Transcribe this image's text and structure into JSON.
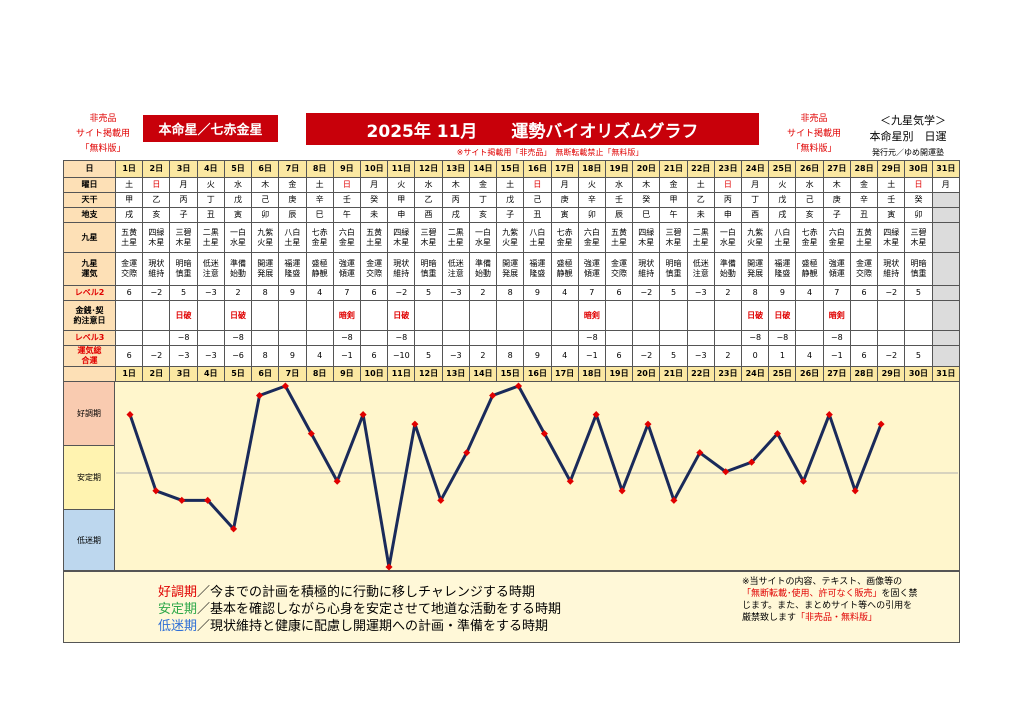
{
  "header": {
    "left_note": [
      "非売品",
      "サイト掲載用",
      "「無料版」"
    ],
    "honmeisei": "本命星／七赤金星",
    "main_title": "2025年 11月　　運勢バイオリズムグラフ",
    "right_note": [
      "非売品",
      "サイト掲載用",
      "「無料版」"
    ],
    "sub_notice": "※サイト掲載用「非売品」　無断転載禁止「無料版」",
    "brand_title": "＜九星気学＞",
    "brand_subtitle": "本命星別　日運",
    "publisher": "発行元／ゆめ開運塾"
  },
  "row_labels": {
    "day": "日",
    "weekday": "曜日",
    "tenkan": "天干",
    "chishi": "地支",
    "kyusei": "九星",
    "unsei": "九星運気",
    "level2": "レベル2",
    "kinsen": "金銭･契約注意日",
    "level3": "レベル3",
    "total": "運気総合運"
  },
  "days": [
    "1日",
    "2日",
    "3日",
    "4日",
    "5日",
    "6日",
    "7日",
    "8日",
    "9日",
    "10日",
    "11日",
    "12日",
    "13日",
    "14日",
    "15日",
    "16日",
    "17日",
    "18日",
    "19日",
    "20日",
    "21日",
    "22日",
    "23日",
    "24日",
    "25日",
    "26日",
    "27日",
    "28日",
    "29日",
    "30日",
    "31日"
  ],
  "weekdays": [
    "土",
    "日",
    "月",
    "火",
    "水",
    "木",
    "金",
    "土",
    "日",
    "月",
    "火",
    "水",
    "木",
    "金",
    "土",
    "日",
    "月",
    "火",
    "水",
    "木",
    "金",
    "土",
    "日",
    "月",
    "火",
    "水",
    "木",
    "金",
    "土",
    "日",
    "月"
  ],
  "sunday_indices": [
    1,
    8,
    15,
    22,
    29
  ],
  "tenkan": [
    "甲",
    "乙",
    "丙",
    "丁",
    "戊",
    "己",
    "庚",
    "辛",
    "壬",
    "癸",
    "甲",
    "乙",
    "丙",
    "丁",
    "戊",
    "己",
    "庚",
    "辛",
    "壬",
    "癸",
    "甲",
    "乙",
    "丙",
    "丁",
    "戊",
    "己",
    "庚",
    "辛",
    "壬",
    "癸",
    ""
  ],
  "chishi": [
    "戌",
    "亥",
    "子",
    "丑",
    "寅",
    "卯",
    "辰",
    "巳",
    "午",
    "未",
    "申",
    "酉",
    "戌",
    "亥",
    "子",
    "丑",
    "寅",
    "卯",
    "辰",
    "巳",
    "午",
    "未",
    "申",
    "酉",
    "戌",
    "亥",
    "子",
    "丑",
    "寅",
    "卯",
    ""
  ],
  "kyusei": [
    "五黄土星",
    "四緑木星",
    "三碧木星",
    "二黒土星",
    "一白水星",
    "九紫火星",
    "八白土星",
    "七赤金星",
    "六白金星",
    "五黄土星",
    "四緑木星",
    "三碧木星",
    "二黒土星",
    "一白水星",
    "九紫火星",
    "八白土星",
    "七赤金星",
    "六白金星",
    "五黄土星",
    "四緑木星",
    "三碧木星",
    "二黒土星",
    "一白水星",
    "九紫火星",
    "八白土星",
    "七赤金星",
    "六白金星",
    "五黄土星",
    "四緑木星",
    "三碧木星",
    ""
  ],
  "unsei": [
    "金運交際",
    "現状維持",
    "明暗慎重",
    "低迷注意",
    "準備始動",
    "開運発展",
    "福運隆盛",
    "盛極静観",
    "強運傾運",
    "金運交際",
    "現状維持",
    "明暗慎重",
    "低迷注意",
    "準備始動",
    "開運発展",
    "福運隆盛",
    "盛極静観",
    "強運傾運",
    "金運交際",
    "現状維持",
    "明暗慎重",
    "低迷注意",
    "準備始動",
    "開運発展",
    "福運隆盛",
    "盛極静観",
    "強運傾運",
    "金運交際",
    "現状維持",
    "明暗慎重",
    ""
  ],
  "level2": [
    "6",
    "−2",
    "5",
    "−3",
    "2",
    "8",
    "9",
    "4",
    "7",
    "6",
    "−2",
    "5",
    "−3",
    "2",
    "8",
    "9",
    "4",
    "7",
    "6",
    "−2",
    "5",
    "−3",
    "2",
    "8",
    "9",
    "4",
    "7",
    "6",
    "−2",
    "5",
    ""
  ],
  "kinsen": [
    "",
    "",
    "日破",
    "",
    "日破",
    "",
    "",
    "",
    "暗剣",
    "",
    "日破",
    "",
    "",
    "",
    "",
    "",
    "",
    "暗剣",
    "",
    "",
    "",
    "",
    "",
    "日破",
    "日破",
    "",
    "暗剣",
    "",
    "",
    "",
    ""
  ],
  "level3": [
    "",
    "",
    "−8",
    "",
    "−8",
    "",
    "",
    "",
    "−8",
    "",
    "−8",
    "",
    "",
    "",
    "",
    "",
    "",
    "−8",
    "",
    "",
    "",
    "",
    "",
    "−8",
    "−8",
    "",
    "−8",
    "",
    "",
    "",
    ""
  ],
  "total": [
    "6",
    "−2",
    "−3",
    "−3",
    "−6",
    "8",
    "9",
    "4",
    "−1",
    "6",
    "−10",
    "5",
    "−3",
    "2",
    "8",
    "9",
    "4",
    "−1",
    "6",
    "−2",
    "5",
    "−3",
    "2",
    "0",
    "1",
    "4",
    "−1",
    "6",
    "−2",
    "5",
    ""
  ],
  "zones": {
    "good": {
      "label": "好調期",
      "color": "#f9cbb0"
    },
    "stable": {
      "label": "安定期",
      "color": "#fff3b0"
    },
    "low": {
      "label": "低迷期",
      "color": "#bdd7ee"
    }
  },
  "chart_data": {
    "type": "line",
    "x": [
      1,
      2,
      3,
      4,
      5,
      6,
      7,
      8,
      9,
      10,
      11,
      12,
      13,
      14,
      15,
      16,
      17,
      18,
      19,
      20,
      21,
      22,
      23,
      24,
      25,
      26,
      27,
      28,
      29,
      30
    ],
    "series": [
      {
        "values": [
          6,
          -2,
          -3,
          -3,
          -6,
          8,
          9,
          4,
          -1,
          6,
          -10,
          5,
          -3,
          2,
          8,
          9,
          4,
          -1,
          6,
          -2,
          5,
          -3,
          2,
          0,
          1,
          4,
          -1,
          6,
          -2,
          5
        ]
      }
    ],
    "ylim": [
      -10,
      9
    ],
    "line_color": "#1a2a5a",
    "marker_color": "#e00000",
    "grid": false
  },
  "legend": [
    {
      "term": "好調期",
      "text": "／今までの計画を積極的に行動に移しチャレンジする時期",
      "color": "#e00000"
    },
    {
      "term": "安定期",
      "text": "／基本を確認しながら心身を安定させて地道な活動をする時期",
      "color": "#2ea84a"
    },
    {
      "term": "低迷期",
      "text": "／現状維持と健康に配慮し開運期への計画・準備をする時期",
      "color": "#2f6fd6"
    }
  ],
  "notice": {
    "line1": "※当サイトの内容、テキスト、画像等の",
    "line2_red": "「無断転載･使用、許可なく販売」",
    "line2_rest": "を固く禁",
    "line3": "じます。また、まとめサイト等への引用を",
    "line4_black": "厳禁致します",
    "line4_red": "「非売品・無料版」"
  }
}
